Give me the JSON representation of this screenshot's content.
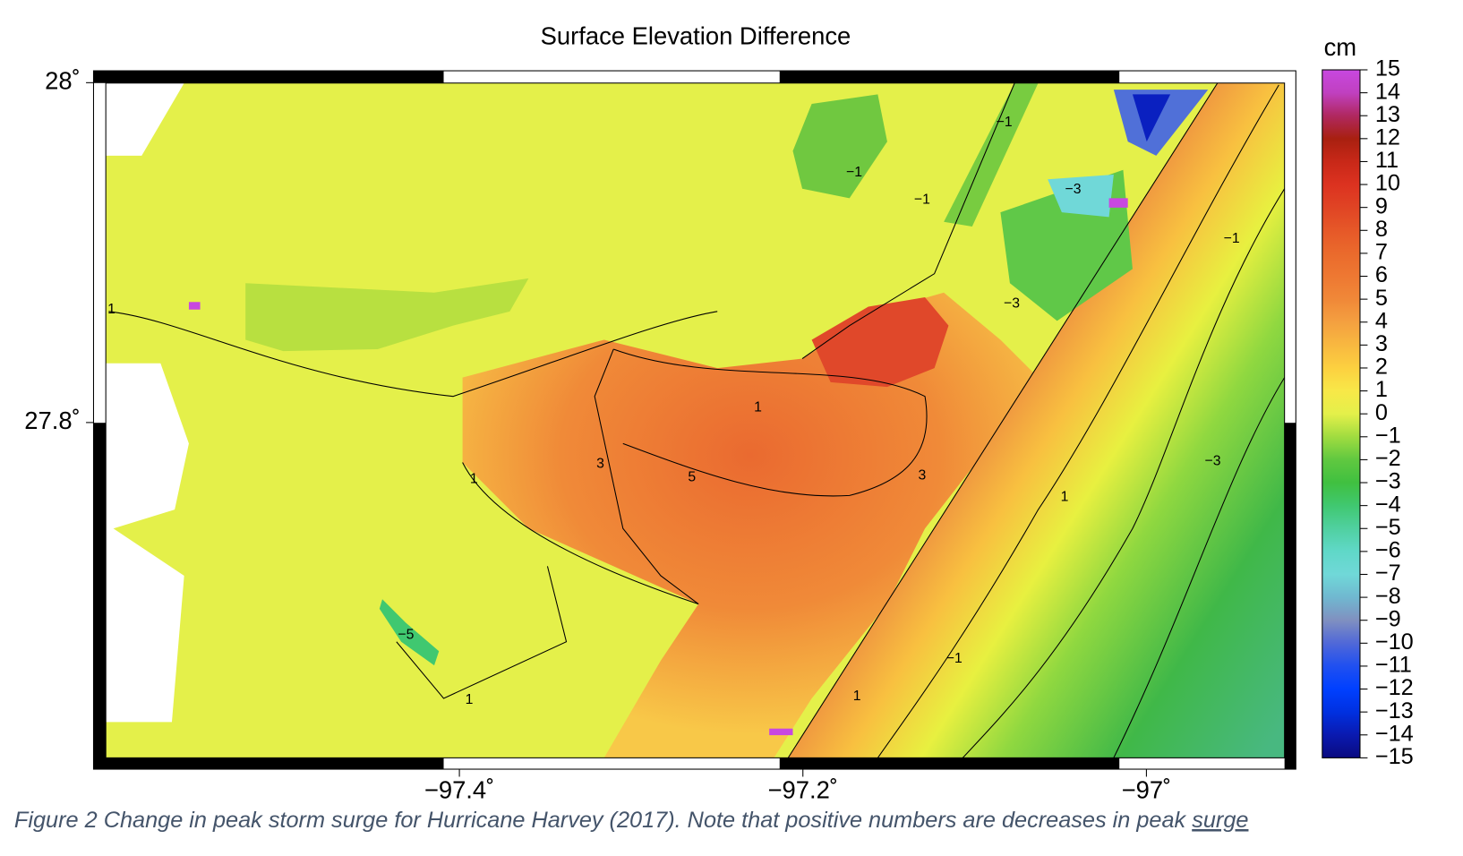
{
  "chart_data": {
    "type": "map",
    "title": "Surface Elevation Difference",
    "colorbar_label": "cm",
    "xlim": [
      -97.613,
      -96.913
    ],
    "ylim": [
      27.596,
      28.007
    ],
    "xticks": [
      {
        "value": -97.4,
        "label": "−97.4˚"
      },
      {
        "value": -97.2,
        "label": "−97.2˚"
      },
      {
        "value": -97,
        "label": "−97˚"
      }
    ],
    "yticks": [
      {
        "value": 28,
        "label": "28˚"
      },
      {
        "value": 27.8,
        "label": "27.8˚"
      }
    ],
    "colorbar_lim": [
      -15,
      15
    ],
    "colorbar_ticks": [
      {
        "value": -15,
        "label": "−15"
      },
      {
        "value": -14,
        "label": "−14"
      },
      {
        "value": -13,
        "label": "−13"
      },
      {
        "value": -12,
        "label": "−12"
      },
      {
        "value": -11,
        "label": "−11"
      },
      {
        "value": -10,
        "label": "−10"
      },
      {
        "value": -9,
        "label": "−9"
      },
      {
        "value": -8,
        "label": "−8"
      },
      {
        "value": -7,
        "label": "−7"
      },
      {
        "value": -6,
        "label": "−6"
      },
      {
        "value": -5,
        "label": "−5"
      },
      {
        "value": -4,
        "label": "−4"
      },
      {
        "value": -3,
        "label": "−3"
      },
      {
        "value": -2,
        "label": "−2"
      },
      {
        "value": -1,
        "label": "−1"
      },
      0,
      1,
      2,
      3,
      4,
      5,
      6,
      7,
      8,
      9,
      10,
      11,
      12,
      13,
      14,
      15
    ],
    "colormap": [
      "#0a0a80",
      "#0a1ab0",
      "#0030e0",
      "#0040ff",
      "#2050f0",
      "#5068d8",
      "#8090c0",
      "#70b8d0",
      "#70d8d8",
      "#60d8c8",
      "#50d0a0",
      "#40c870",
      "#40c040",
      "#60c840",
      "#a0dc40",
      "#e4f04a",
      "#f8e848",
      "#fcd040",
      "#f8b840",
      "#f4a040",
      "#f08838",
      "#ee7832",
      "#ea6a2c",
      "#e65828",
      "#e04424",
      "#dc3220",
      "#c82818",
      "#a82010",
      "#b02860",
      "#c040c0",
      "#c848e0"
    ],
    "contour_labels": [
      "1",
      "3",
      "5",
      "1",
      "3",
      "−1",
      "−1",
      "−1",
      "−3",
      "−3",
      "1",
      "−1",
      "−1",
      "1",
      "−3",
      "−5",
      "1",
      "1"
    ],
    "caption": "Figure 2 Change in peak storm surge for Hurricane Harvey (2017). Note that positive numbers are decreases in peak ",
    "caption_underlined": "surge"
  }
}
